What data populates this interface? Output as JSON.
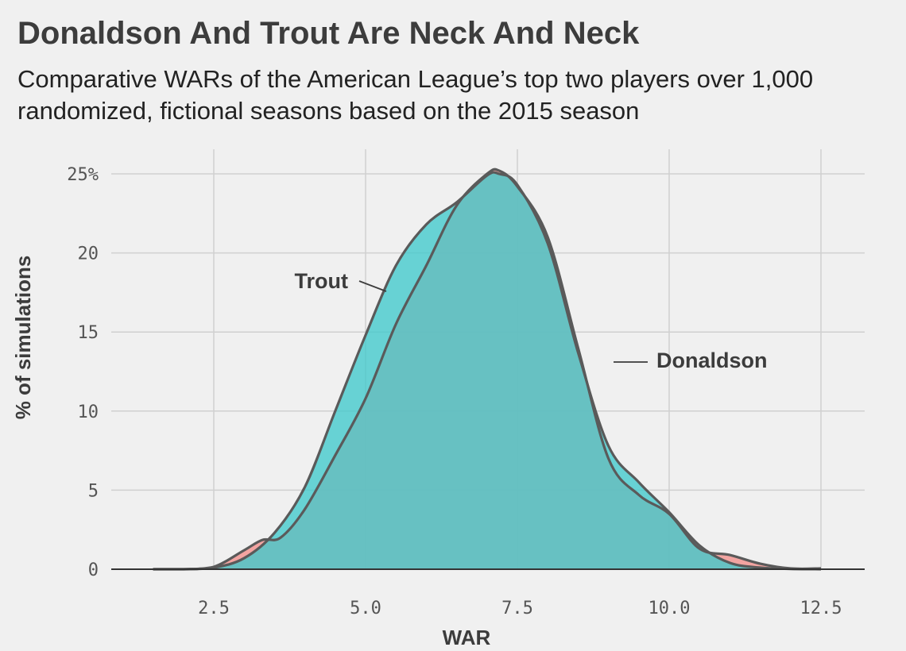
{
  "header": {
    "title": "Donaldson And Trout Are Neck And Neck",
    "subtitle": "Comparative WARs of the American League’s top two players over 1,000 randomized, fictional seasons based on the 2015 season"
  },
  "colors": {
    "background": "#f0f0f0",
    "grid": "#d0d0d0",
    "donaldson_fill": "#f28e8a",
    "trout_fill": "#40c9cc",
    "outline": "#5a5a5a",
    "trout_edge": "#2a9a9a"
  },
  "chart_data": {
    "type": "area",
    "xlabel": "WAR",
    "ylabel": "% of simulations",
    "xlim": [
      1.2,
      13.2
    ],
    "ylim": [
      0,
      26
    ],
    "x_ticks": [
      2.5,
      5.0,
      7.5,
      10.0,
      12.5
    ],
    "x_tick_labels": [
      "2.5",
      "5.0",
      "7.5",
      "10.0",
      "12.5"
    ],
    "y_ticks": [
      0,
      5,
      10,
      15,
      20,
      25
    ],
    "y_tick_labels": [
      "0",
      "5",
      "10",
      "15",
      "20",
      "25%"
    ],
    "grid": true,
    "series": [
      {
        "name": "Donaldson",
        "x": [
          1.5,
          2.0,
          2.5,
          3.0,
          3.3,
          3.6,
          4.0,
          4.5,
          5.0,
          5.5,
          6.0,
          6.5,
          7.0,
          7.2,
          7.5,
          8.0,
          8.5,
          9.0,
          9.5,
          10.0,
          10.5,
          11.0,
          11.5,
          12.0,
          12.5
        ],
        "values": [
          0,
          0,
          0.15,
          1.2,
          1.85,
          2.0,
          3.8,
          7.2,
          10.8,
          15.5,
          19.2,
          23.0,
          25.0,
          25.2,
          24.2,
          21.0,
          14.0,
          7.0,
          4.7,
          3.5,
          1.3,
          0.9,
          0.35,
          0.05,
          0.05
        ]
      },
      {
        "name": "Trout",
        "x": [
          1.5,
          2.0,
          2.5,
          3.0,
          3.5,
          4.0,
          4.5,
          5.0,
          5.5,
          6.0,
          6.5,
          7.0,
          7.2,
          7.5,
          8.0,
          8.5,
          9.0,
          9.5,
          10.0,
          10.5,
          11.0,
          11.5,
          12.0,
          12.5
        ],
        "values": [
          0,
          0,
          0.1,
          0.7,
          2.3,
          5.2,
          10.0,
          14.8,
          19.2,
          21.8,
          23.2,
          24.9,
          25.0,
          24.3,
          20.6,
          13.7,
          7.8,
          5.5,
          3.6,
          1.5,
          0.4,
          0.1,
          0.02,
          0
        ]
      }
    ],
    "annotations": [
      {
        "text": "Trout",
        "series": "Trout"
      },
      {
        "text": "Donaldson",
        "series": "Donaldson"
      }
    ]
  }
}
